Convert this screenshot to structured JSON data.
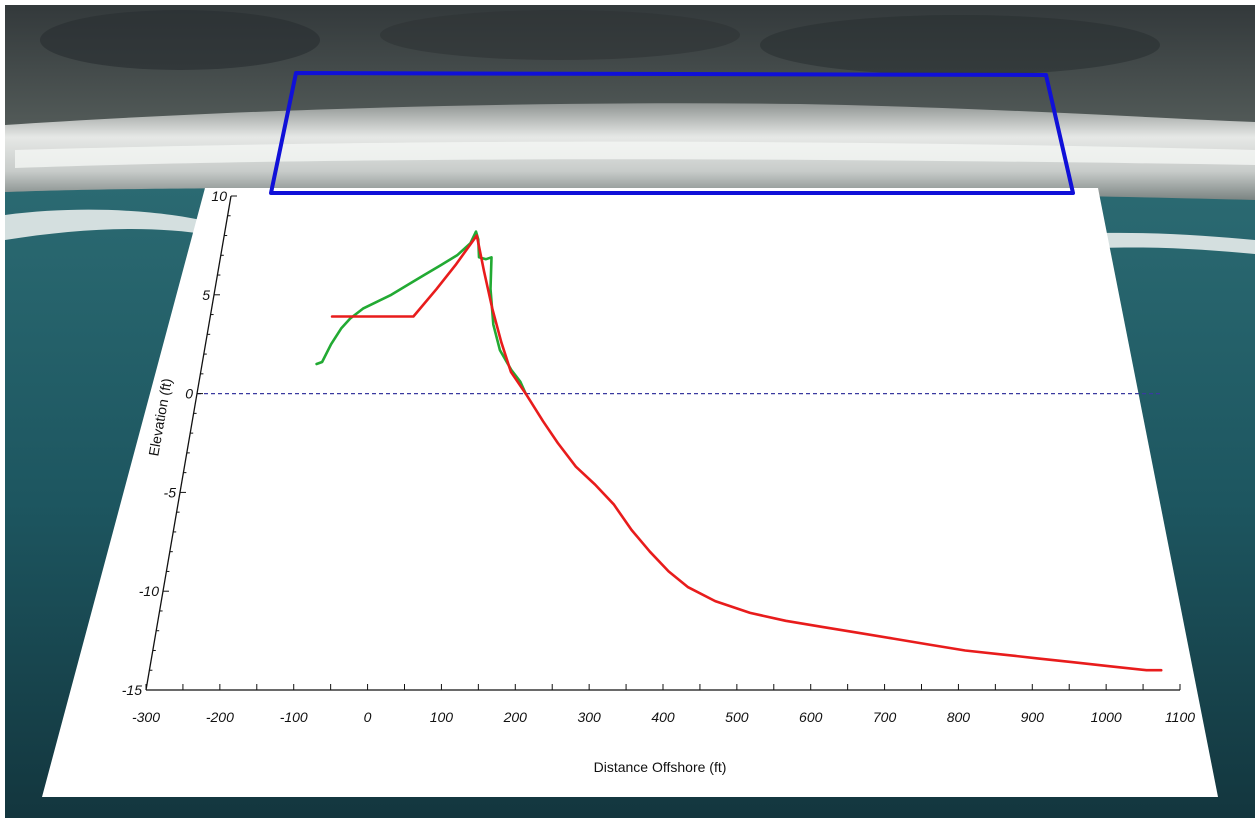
{
  "colors": {
    "frame": "#1010d8",
    "series_green": "#22aa33",
    "series_red": "#e81c1c",
    "zero_line": "#3a3aa0",
    "panel": "#ffffff",
    "sand": "#d6d8d6",
    "water": "#1c5660",
    "land": "#3e4446"
  },
  "chart_data": {
    "type": "line",
    "title": "",
    "xlabel": "Distance Offshore (ft)",
    "ylabel": "Elevation (ft)",
    "xlim": [
      -300,
      1100
    ],
    "ylim": [
      -15,
      10
    ],
    "x_ticks": [
      -300,
      -200,
      -100,
      0,
      100,
      200,
      300,
      400,
      500,
      600,
      700,
      800,
      900,
      1000,
      1100
    ],
    "x_tick_labels": [
      "-300",
      "-200",
      "-100",
      "0",
      "100",
      "200",
      "300",
      "400",
      "500",
      "600",
      "700",
      "800",
      "900",
      "1000",
      "1100"
    ],
    "y_ticks": [
      -15,
      -10,
      -5,
      0,
      5,
      10
    ],
    "y_tick_labels": [
      "-15",
      "-10",
      "-5",
      "0",
      "5",
      "10"
    ],
    "reference_line": {
      "y": 0,
      "style": "dashed"
    },
    "grid": false,
    "legend": "none",
    "series": [
      {
        "color": "#22aa33",
        "points": [
          [
            -145,
            1.5
          ],
          [
            -138,
            1.6
          ],
          [
            -130,
            2.5
          ],
          [
            -120,
            3.3
          ],
          [
            -110,
            3.8
          ],
          [
            -95,
            4.3
          ],
          [
            -80,
            4.6
          ],
          [
            -60,
            5.0
          ],
          [
            -40,
            5.5
          ],
          [
            -20,
            6.0
          ],
          [
            0,
            6.5
          ],
          [
            20,
            7.0
          ],
          [
            35,
            7.6
          ],
          [
            40,
            8.2
          ],
          [
            45,
            7.8
          ],
          [
            50,
            6.9
          ],
          [
            60,
            6.8
          ],
          [
            67,
            6.9
          ],
          [
            73,
            5.3
          ],
          [
            85,
            3.5
          ],
          [
            100,
            2.2
          ],
          [
            120,
            1.2
          ],
          [
            135,
            0.6
          ],
          [
            145,
            0.0
          ]
        ]
      },
      {
        "color": "#e81c1c",
        "points": [
          [
            -135,
            3.9
          ],
          [
            -25,
            3.9
          ],
          [
            0,
            5.3
          ],
          [
            20,
            6.5
          ],
          [
            42,
            8.0
          ],
          [
            60,
            6.2
          ],
          [
            80,
            4.3
          ],
          [
            100,
            2.6
          ],
          [
            120,
            1.1
          ],
          [
            145,
            0.0
          ],
          [
            175,
            -1.4
          ],
          [
            200,
            -2.5
          ],
          [
            230,
            -3.7
          ],
          [
            260,
            -4.6
          ],
          [
            290,
            -5.6
          ],
          [
            320,
            -6.9
          ],
          [
            350,
            -8.0
          ],
          [
            380,
            -9.0
          ],
          [
            410,
            -9.8
          ],
          [
            450,
            -10.5
          ],
          [
            500,
            -11.1
          ],
          [
            550,
            -11.5
          ],
          [
            600,
            -11.8
          ],
          [
            650,
            -12.1
          ],
          [
            700,
            -12.4
          ],
          [
            750,
            -12.7
          ],
          [
            800,
            -13.0
          ],
          [
            850,
            -13.2
          ],
          [
            900,
            -13.4
          ],
          [
            950,
            -13.6
          ],
          [
            1000,
            -13.8
          ],
          [
            1050,
            -14.0
          ],
          [
            1070,
            -14.0
          ]
        ]
      }
    ]
  }
}
